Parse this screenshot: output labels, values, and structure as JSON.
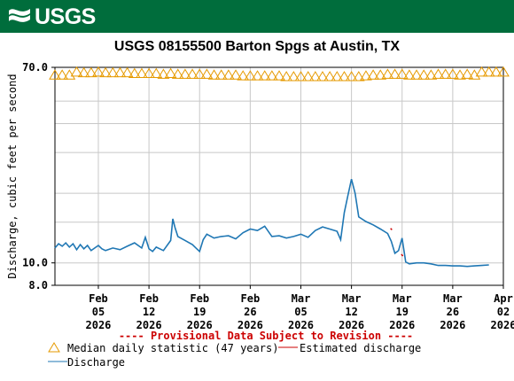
{
  "header": {
    "logo_text": "USGS",
    "title": "USGS 08155500 Barton Spgs at Austin, TX"
  },
  "colors": {
    "banner": "#006d3c",
    "median": "#e69a00",
    "discharge": "#1f77b4",
    "estimated": "#cc0000",
    "grid": "#c8c8c8"
  },
  "chart_data": {
    "type": "line",
    "title": "USGS 08155500 Barton Spgs at Austin, TX",
    "ylabel": "Discharge, cubic feet per second",
    "xlabel": "",
    "y_scale": "log",
    "ylim": [
      8.0,
      70.0
    ],
    "y_ticks": [
      {
        "value": 8.0,
        "label": "8.0"
      },
      {
        "value": 10.0,
        "label": "10.0"
      },
      {
        "value": 70.0,
        "label": "70.0"
      }
    ],
    "xlim": [
      "2026-01-30",
      "2026-04-02"
    ],
    "x_ticks": [
      {
        "date": "2026-02-05",
        "line1": "Feb",
        "line2": "05",
        "line3": "2026"
      },
      {
        "date": "2026-02-12",
        "line1": "Feb",
        "line2": "12",
        "line3": "2026"
      },
      {
        "date": "2026-02-19",
        "line1": "Feb",
        "line2": "19",
        "line3": "2026"
      },
      {
        "date": "2026-02-26",
        "line1": "Feb",
        "line2": "26",
        "line3": "2026"
      },
      {
        "date": "2026-03-05",
        "line1": "Mar",
        "line2": "05",
        "line3": "2026"
      },
      {
        "date": "2026-03-12",
        "line1": "Mar",
        "line2": "12",
        "line3": "2026"
      },
      {
        "date": "2026-03-19",
        "line1": "Mar",
        "line2": "19",
        "line3": "2026"
      },
      {
        "date": "2026-03-26",
        "line1": "Mar",
        "line2": "26",
        "line3": "2026"
      },
      {
        "date": "2026-04-02",
        "line1": "Apr",
        "line2": "02",
        "line3": "2026"
      }
    ],
    "grid": true,
    "series": [
      {
        "name": "Median daily statistic (47 years)",
        "style": "triangle-markers",
        "points": [
          [
            "2026-01-30",
            64.5
          ],
          [
            "2026-01-31",
            64.5
          ],
          [
            "2026-02-01",
            64.5
          ],
          [
            "2026-02-02",
            66.5
          ],
          [
            "2026-02-03",
            66.0
          ],
          [
            "2026-02-04",
            66.0
          ],
          [
            "2026-02-05",
            66.5
          ],
          [
            "2026-02-06",
            66.0
          ],
          [
            "2026-02-07",
            66.0
          ],
          [
            "2026-02-08",
            66.0
          ],
          [
            "2026-02-09",
            66.0
          ],
          [
            "2026-02-10",
            65.5
          ],
          [
            "2026-02-11",
            65.5
          ],
          [
            "2026-02-12",
            65.5
          ],
          [
            "2026-02-13",
            65.5
          ],
          [
            "2026-02-14",
            65.0
          ],
          [
            "2026-02-15",
            65.5
          ],
          [
            "2026-02-16",
            65.0
          ],
          [
            "2026-02-17",
            65.0
          ],
          [
            "2026-02-18",
            65.0
          ],
          [
            "2026-02-19",
            65.0
          ],
          [
            "2026-02-20",
            65.0
          ],
          [
            "2026-02-21",
            64.5
          ],
          [
            "2026-02-22",
            64.5
          ],
          [
            "2026-02-23",
            64.5
          ],
          [
            "2026-02-24",
            64.5
          ],
          [
            "2026-02-25",
            64.0
          ],
          [
            "2026-02-26",
            64.0
          ],
          [
            "2026-02-27",
            64.0
          ],
          [
            "2026-02-28",
            64.0
          ],
          [
            "2026-03-01",
            64.0
          ],
          [
            "2026-03-02",
            64.0
          ],
          [
            "2026-03-03",
            63.5
          ],
          [
            "2026-03-04",
            63.5
          ],
          [
            "2026-03-05",
            63.5
          ],
          [
            "2026-03-06",
            63.5
          ],
          [
            "2026-03-07",
            63.5
          ],
          [
            "2026-03-08",
            63.5
          ],
          [
            "2026-03-09",
            63.5
          ],
          [
            "2026-03-10",
            63.5
          ],
          [
            "2026-03-11",
            63.5
          ],
          [
            "2026-03-12",
            63.5
          ],
          [
            "2026-03-13",
            63.5
          ],
          [
            "2026-03-14",
            64.0
          ],
          [
            "2026-03-15",
            64.5
          ],
          [
            "2026-03-16",
            64.5
          ],
          [
            "2026-03-17",
            65.0
          ],
          [
            "2026-03-18",
            65.0
          ],
          [
            "2026-03-19",
            65.0
          ],
          [
            "2026-03-20",
            64.5
          ],
          [
            "2026-03-21",
            64.5
          ],
          [
            "2026-03-22",
            64.5
          ],
          [
            "2026-03-23",
            64.5
          ],
          [
            "2026-03-24",
            65.0
          ],
          [
            "2026-03-25",
            65.0
          ],
          [
            "2026-03-26",
            65.0
          ],
          [
            "2026-03-27",
            64.5
          ],
          [
            "2026-03-28",
            65.0
          ],
          [
            "2026-03-29",
            64.5
          ],
          [
            "2026-03-30",
            66.5
          ],
          [
            "2026-03-31",
            66.5
          ],
          [
            "2026-04-01",
            66.5
          ],
          [
            "2026-04-02",
            66.5
          ]
        ]
      },
      {
        "name": "Discharge",
        "style": "line",
        "points": [
          [
            "2026-01-30",
            11.6
          ],
          [
            "2026-01-30.5",
            12.1
          ],
          [
            "2026-01-31",
            11.8
          ],
          [
            "2026-01-31.5",
            12.2
          ],
          [
            "2026-02-01",
            11.7
          ],
          [
            "2026-02-01.5",
            12.1
          ],
          [
            "2026-02-02",
            11.4
          ],
          [
            "2026-02-02.5",
            12.0
          ],
          [
            "2026-02-03",
            11.5
          ],
          [
            "2026-02-03.5",
            11.9
          ],
          [
            "2026-02-04",
            11.3
          ],
          [
            "2026-02-05",
            11.9
          ],
          [
            "2026-02-05.5",
            11.5
          ],
          [
            "2026-02-06",
            11.3
          ],
          [
            "2026-02-07",
            11.6
          ],
          [
            "2026-02-08",
            11.4
          ],
          [
            "2026-02-09",
            11.8
          ],
          [
            "2026-02-10",
            12.2
          ],
          [
            "2026-02-11",
            11.6
          ],
          [
            "2026-02-11.5",
            12.9
          ],
          [
            "2026-02-12",
            11.5
          ],
          [
            "2026-02-12.5",
            11.2
          ],
          [
            "2026-02-13",
            11.7
          ],
          [
            "2026-02-14",
            11.3
          ],
          [
            "2026-02-15",
            12.5
          ],
          [
            "2026-02-15.3",
            15.5
          ],
          [
            "2026-02-15.6",
            14.2
          ],
          [
            "2026-02-16",
            13.0
          ],
          [
            "2026-02-17",
            12.5
          ],
          [
            "2026-02-18",
            12.0
          ],
          [
            "2026-02-18.5",
            11.6
          ],
          [
            "2026-02-19",
            11.2
          ],
          [
            "2026-02-19.5",
            12.6
          ],
          [
            "2026-02-20",
            13.3
          ],
          [
            "2026-02-21",
            12.8
          ],
          [
            "2026-02-22",
            13.0
          ],
          [
            "2026-02-23",
            13.1
          ],
          [
            "2026-02-24",
            12.7
          ],
          [
            "2026-02-25",
            13.5
          ],
          [
            "2026-02-26",
            14.0
          ],
          [
            "2026-02-27",
            13.8
          ],
          [
            "2026-02-28",
            14.4
          ],
          [
            "2026-03-01",
            13.0
          ],
          [
            "2026-03-02",
            13.1
          ],
          [
            "2026-03-03",
            12.8
          ],
          [
            "2026-03-04",
            13.0
          ],
          [
            "2026-03-05",
            13.3
          ],
          [
            "2026-03-06",
            12.9
          ],
          [
            "2026-03-07",
            13.8
          ],
          [
            "2026-03-08",
            14.3
          ],
          [
            "2026-03-09",
            14.0
          ],
          [
            "2026-03-10",
            13.7
          ],
          [
            "2026-03-10.5",
            12.6
          ],
          [
            "2026-03-11",
            16.5
          ],
          [
            "2026-03-11.5",
            19.5
          ],
          [
            "2026-03-12",
            23.0
          ],
          [
            "2026-03-12.5",
            20.0
          ],
          [
            "2026-03-13",
            15.8
          ],
          [
            "2026-03-14",
            15.1
          ],
          [
            "2026-03-15",
            14.6
          ],
          [
            "2026-03-16",
            14.0
          ],
          [
            "2026-03-17",
            13.4
          ],
          [
            "2026-03-17.5",
            12.4
          ],
          [
            "2026-03-18",
            11.0
          ],
          [
            "2026-03-18.5",
            11.3
          ],
          [
            "2026-03-19",
            12.8
          ],
          [
            "2026-03-19.5",
            10.1
          ],
          [
            "2026-03-20",
            9.9
          ],
          [
            "2026-03-21",
            10.0
          ],
          [
            "2026-03-22",
            10.0
          ],
          [
            "2026-03-23",
            9.9
          ],
          [
            "2026-03-24",
            9.75
          ],
          [
            "2026-03-25",
            9.75
          ],
          [
            "2026-03-26",
            9.7
          ],
          [
            "2026-03-27",
            9.7
          ],
          [
            "2026-03-28",
            9.65
          ],
          [
            "2026-03-29",
            9.7
          ],
          [
            "2026-03-30",
            9.75
          ],
          [
            "2026-03-31",
            9.8
          ]
        ]
      },
      {
        "name": "Estimated discharge",
        "style": "line",
        "points": [
          [
            "2026-03-17.4",
            14.1
          ],
          [
            "2026-03-17.6",
            13.9
          ],
          [
            "2026-03-18.9",
            10.9
          ],
          [
            "2026-03-19.1",
            10.7
          ]
        ]
      }
    ],
    "annotations": [
      "---- Provisional Data Subject to Revision ----"
    ]
  },
  "legend": {
    "median_label": "Median daily statistic (47 years)",
    "estimated_label": "Estimated discharge",
    "discharge_label": "Discharge"
  }
}
